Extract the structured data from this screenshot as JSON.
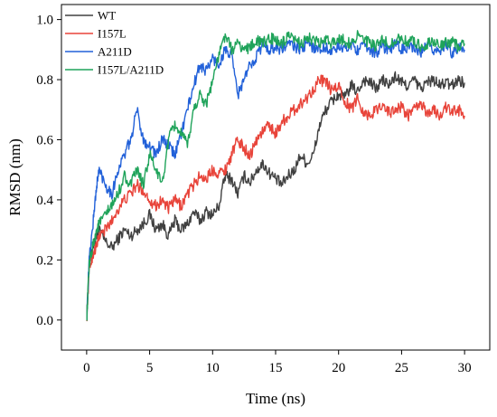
{
  "chart_data": {
    "type": "line",
    "xlabel": "Time (ns)",
    "ylabel": "RMSD (nm)",
    "xlim": [
      -2,
      32
    ],
    "ylim": [
      -0.1,
      1.05
    ],
    "xticks": [
      0,
      5,
      10,
      15,
      20,
      25,
      30
    ],
    "yticks": [
      0.0,
      0.2,
      0.4,
      0.6,
      0.8,
      1.0
    ],
    "xtick_labels": [
      "0",
      "5",
      "10",
      "15",
      "20",
      "25",
      "30"
    ],
    "ytick_labels": [
      "0.0",
      "0.2",
      "0.4",
      "0.6",
      "0.8",
      "1.0"
    ],
    "grid": false,
    "legend": "top-left",
    "series": [
      {
        "name": "WT",
        "color": "#404040",
        "x": [
          0,
          0.2,
          0.5,
          0.8,
          1,
          1.5,
          2,
          2.5,
          3,
          3.5,
          4,
          4.5,
          5,
          5.5,
          6,
          6.5,
          7,
          7.5,
          8,
          8.5,
          9,
          9.5,
          10,
          10.5,
          11,
          11.5,
          12,
          12.5,
          13,
          13.5,
          14,
          14.5,
          15,
          15.5,
          16,
          16.5,
          17,
          17.5,
          18,
          18.5,
          19,
          19.5,
          20,
          20.5,
          21,
          21.5,
          22,
          22.5,
          23,
          23.5,
          24,
          24.5,
          25,
          25.5,
          26,
          26.5,
          27,
          27.5,
          28,
          28.5,
          29,
          29.5,
          30
        ],
        "y": [
          0.0,
          0.18,
          0.25,
          0.28,
          0.3,
          0.26,
          0.24,
          0.27,
          0.3,
          0.28,
          0.3,
          0.32,
          0.35,
          0.3,
          0.32,
          0.28,
          0.33,
          0.3,
          0.32,
          0.36,
          0.33,
          0.36,
          0.35,
          0.38,
          0.48,
          0.47,
          0.42,
          0.48,
          0.46,
          0.5,
          0.52,
          0.49,
          0.47,
          0.45,
          0.48,
          0.5,
          0.55,
          0.52,
          0.55,
          0.65,
          0.7,
          0.73,
          0.75,
          0.74,
          0.78,
          0.76,
          0.8,
          0.79,
          0.77,
          0.8,
          0.78,
          0.81,
          0.79,
          0.78,
          0.8,
          0.77,
          0.79,
          0.8,
          0.78,
          0.79,
          0.78,
          0.8,
          0.79
        ]
      },
      {
        "name": "I157L",
        "color": "#e8443a",
        "x": [
          0,
          0.2,
          0.5,
          0.8,
          1,
          1.5,
          2,
          2.5,
          3,
          3.5,
          4,
          4.5,
          5,
          5.5,
          6,
          6.5,
          7,
          7.5,
          8,
          8.5,
          9,
          9.5,
          10,
          10.5,
          11,
          11.5,
          12,
          12.5,
          13,
          13.5,
          14,
          14.5,
          15,
          15.5,
          16,
          16.5,
          17,
          17.5,
          18,
          18.5,
          19,
          19.5,
          20,
          20.5,
          21,
          21.5,
          22,
          22.5,
          23,
          23.5,
          24,
          24.5,
          25,
          25.5,
          26,
          26.5,
          27,
          27.5,
          28,
          28.5,
          29,
          29.5,
          30
        ],
        "y": [
          0.0,
          0.17,
          0.22,
          0.25,
          0.28,
          0.3,
          0.33,
          0.37,
          0.4,
          0.42,
          0.45,
          0.43,
          0.4,
          0.38,
          0.4,
          0.37,
          0.4,
          0.38,
          0.42,
          0.45,
          0.48,
          0.47,
          0.5,
          0.49,
          0.5,
          0.55,
          0.6,
          0.57,
          0.55,
          0.6,
          0.63,
          0.65,
          0.62,
          0.66,
          0.68,
          0.7,
          0.72,
          0.74,
          0.77,
          0.8,
          0.79,
          0.76,
          0.78,
          0.73,
          0.7,
          0.74,
          0.69,
          0.68,
          0.7,
          0.72,
          0.69,
          0.7,
          0.71,
          0.68,
          0.7,
          0.72,
          0.69,
          0.7,
          0.68,
          0.71,
          0.69,
          0.7,
          0.68
        ]
      },
      {
        "name": "A211D",
        "color": "#2261d9",
        "x": [
          0,
          0.2,
          0.5,
          0.8,
          1,
          1.5,
          2,
          2.5,
          3,
          3.5,
          4,
          4.5,
          5,
          5.5,
          6,
          6.5,
          7,
          7.5,
          8,
          8.5,
          9,
          9.5,
          10,
          10.5,
          11,
          11.5,
          12,
          12.5,
          13,
          13.5,
          14,
          14.5,
          15,
          15.5,
          16,
          16.5,
          17,
          17.5,
          18,
          18.5,
          19,
          19.5,
          20,
          20.5,
          21,
          21.5,
          22,
          22.5,
          23,
          23.5,
          24,
          24.5,
          25,
          25.5,
          26,
          26.5,
          27,
          27.5,
          28,
          28.5,
          29,
          29.5,
          30
        ],
        "y": [
          0.0,
          0.2,
          0.32,
          0.45,
          0.5,
          0.45,
          0.42,
          0.5,
          0.55,
          0.6,
          0.7,
          0.6,
          0.58,
          0.55,
          0.6,
          0.58,
          0.55,
          0.62,
          0.7,
          0.78,
          0.85,
          0.83,
          0.87,
          0.85,
          0.9,
          0.88,
          0.75,
          0.8,
          0.85,
          0.88,
          0.92,
          0.9,
          0.91,
          0.9,
          0.92,
          0.91,
          0.9,
          0.92,
          0.91,
          0.9,
          0.91,
          0.89,
          0.91,
          0.9,
          0.92,
          0.9,
          0.91,
          0.9,
          0.89,
          0.91,
          0.9,
          0.92,
          0.9,
          0.91,
          0.9,
          0.89,
          0.91,
          0.9,
          0.9,
          0.91,
          0.89,
          0.91,
          0.9
        ]
      },
      {
        "name": "I157L/A211D",
        "color": "#1fa35a",
        "x": [
          0,
          0.2,
          0.5,
          0.8,
          1,
          1.5,
          2,
          2.5,
          3,
          3.5,
          4,
          4.5,
          5,
          5.5,
          6,
          6.5,
          7,
          7.5,
          8,
          8.5,
          9,
          9.5,
          10,
          10.5,
          11,
          11.5,
          12,
          12.5,
          13,
          13.5,
          14,
          14.5,
          15,
          15.5,
          16,
          16.5,
          17,
          17.5,
          18,
          18.5,
          19,
          19.5,
          20,
          20.5,
          21,
          21.5,
          22,
          22.5,
          23,
          23.5,
          24,
          24.5,
          25,
          25.5,
          26,
          26.5,
          27,
          27.5,
          28,
          28.5,
          29,
          29.5,
          30
        ],
        "y": [
          0.0,
          0.18,
          0.25,
          0.3,
          0.32,
          0.35,
          0.38,
          0.42,
          0.48,
          0.45,
          0.5,
          0.45,
          0.55,
          0.5,
          0.45,
          0.6,
          0.65,
          0.62,
          0.58,
          0.7,
          0.75,
          0.72,
          0.8,
          0.88,
          0.95,
          0.9,
          0.92,
          0.9,
          0.91,
          0.93,
          0.92,
          0.94,
          0.93,
          0.92,
          0.94,
          0.93,
          0.92,
          0.94,
          0.93,
          0.92,
          0.93,
          0.92,
          0.94,
          0.93,
          0.92,
          0.95,
          0.93,
          0.92,
          0.91,
          0.93,
          0.92,
          0.93,
          0.94,
          0.92,
          0.93,
          0.91,
          0.92,
          0.93,
          0.91,
          0.92,
          0.93,
          0.91,
          0.92
        ]
      }
    ]
  }
}
